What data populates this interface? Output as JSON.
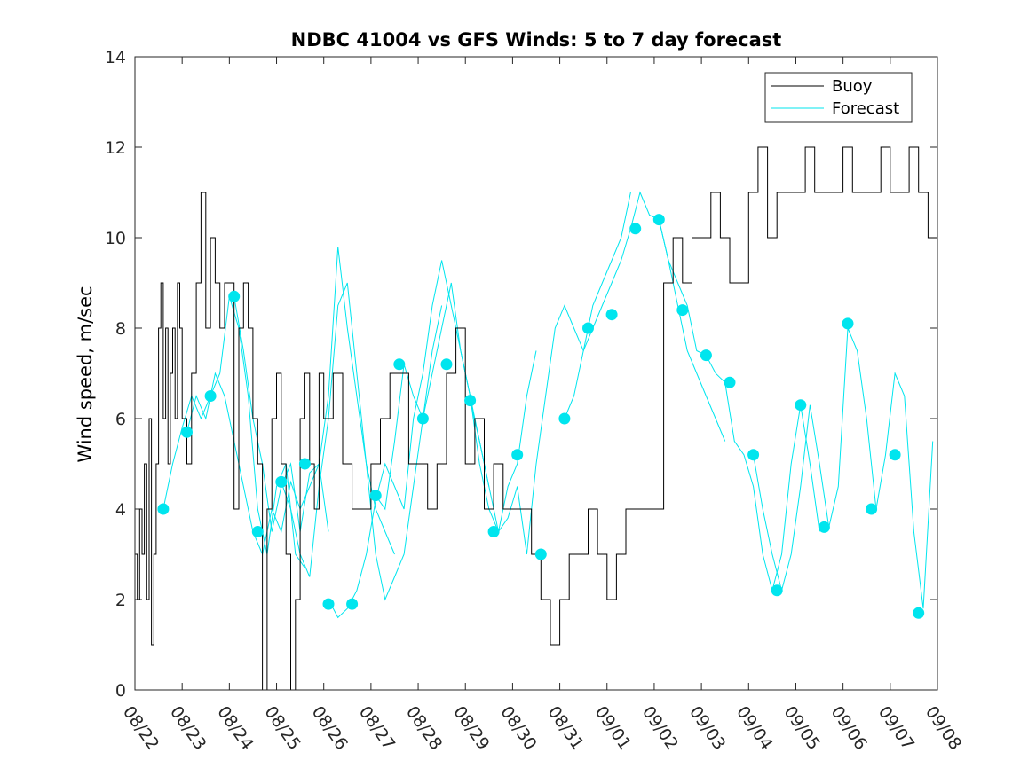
{
  "chart_data": {
    "type": "line",
    "title": "NDBC 41004 vs GFS Winds: 5 to 7 day forecast",
    "xlabel": "",
    "ylabel": "Wind speed, m/sec",
    "x_unit": "days since 08/22",
    "xlim": [
      0,
      17
    ],
    "ylim": [
      0,
      14
    ],
    "x_tick_values": [
      0,
      1,
      2,
      3,
      4,
      5,
      6,
      7,
      8,
      9,
      10,
      11,
      12,
      13,
      14,
      15,
      16,
      17
    ],
    "x_tick_labels": [
      "08/22",
      "08/23",
      "08/24",
      "08/25",
      "08/26",
      "08/27",
      "08/28",
      "08/29",
      "08/30",
      "08/31",
      "09/01",
      "09/02",
      "09/03",
      "09/04",
      "09/05",
      "09/06",
      "09/07",
      "09/08"
    ],
    "y_ticks": [
      0,
      2,
      4,
      6,
      8,
      10,
      12,
      14
    ],
    "legend": {
      "position": "top-right",
      "entries": [
        "Buoy",
        "Forecast"
      ]
    },
    "colors": {
      "buoy": "#000000",
      "forecast": "#00e5ee",
      "marker": "#00e5ee",
      "axis": "#262626"
    },
    "series": [
      {
        "name": "Buoy",
        "x": [
          0.0,
          0.05,
          0.1,
          0.15,
          0.2,
          0.25,
          0.3,
          0.35,
          0.4,
          0.45,
          0.5,
          0.55,
          0.6,
          0.65,
          0.7,
          0.75,
          0.8,
          0.85,
          0.9,
          0.95,
          1.0,
          1.1,
          1.2,
          1.3,
          1.4,
          1.5,
          1.6,
          1.7,
          1.8,
          1.9,
          2.0,
          2.1,
          2.2,
          2.3,
          2.4,
          2.5,
          2.6,
          2.7,
          2.8,
          2.9,
          3.0,
          3.1,
          3.2,
          3.3,
          3.4,
          3.5,
          3.6,
          3.7,
          3.8,
          3.9,
          4.0,
          4.2,
          4.4,
          4.6,
          4.8,
          5.0,
          5.2,
          5.4,
          5.6,
          5.8,
          6.0,
          6.2,
          6.4,
          6.6,
          6.8,
          7.0,
          7.2,
          7.4,
          7.6,
          7.8,
          8.0,
          8.2,
          8.4,
          8.6,
          8.8,
          9.0,
          9.2,
          9.4,
          9.6,
          9.8,
          10.0,
          10.2,
          10.4,
          10.6,
          10.8,
          11.0,
          11.2,
          11.4,
          11.6,
          11.8,
          12.0,
          12.2,
          12.4,
          12.6,
          12.8,
          13.0,
          13.2,
          13.4,
          13.6,
          13.8,
          14.0,
          14.2,
          14.4,
          14.6,
          14.8,
          15.0,
          15.2,
          15.4,
          15.6,
          15.8,
          16.0,
          16.2,
          16.4,
          16.6,
          16.8
        ],
        "values": [
          3,
          2,
          4,
          3,
          5,
          2,
          6,
          1,
          3,
          5,
          8,
          9,
          6,
          8,
          5,
          7,
          8,
          6,
          9,
          8,
          6,
          5,
          7,
          9,
          11,
          8,
          10,
          9,
          8,
          9,
          9,
          4,
          8,
          9,
          8,
          6,
          5,
          0,
          4,
          6,
          7,
          5,
          3,
          0,
          2,
          6,
          7,
          5,
          4,
          7,
          6,
          7,
          5,
          4,
          4,
          5,
          6,
          7,
          7,
          5,
          5,
          4,
          5,
          7,
          8,
          5,
          6,
          4,
          5,
          4,
          4,
          4,
          3,
          2,
          1,
          2,
          3,
          3,
          4,
          3,
          2,
          3,
          4,
          4,
          4,
          4,
          9,
          10,
          9,
          10,
          10,
          11,
          10,
          9,
          9,
          11,
          12,
          10,
          11,
          11,
          11,
          12,
          11,
          11,
          11,
          12,
          11,
          11,
          11,
          12,
          11,
          11,
          12,
          11,
          10
        ]
      },
      {
        "name": "Forecast",
        "runs": [
          {
            "x": [
              0.6,
              0.8,
              1.0,
              1.2,
              1.4,
              1.6,
              1.8,
              2.0,
              2.2,
              2.4,
              2.6,
              2.8,
              3.0,
              3.2,
              3.4,
              3.6
            ],
            "values": [
              4.0,
              5.0,
              5.8,
              6.5,
              6.0,
              6.5,
              7.0,
              8.7,
              8.0,
              6.5,
              4.0,
              3.0,
              4.5,
              5.0,
              3.0,
              2.7
            ]
          },
          {
            "x": [
              1.1,
              1.3,
              1.5,
              1.7,
              1.9,
              2.1,
              2.3,
              2.5,
              2.7,
              2.9,
              3.1,
              3.3,
              3.5,
              3.7,
              3.9,
              4.1
            ],
            "values": [
              5.7,
              6.5,
              6.0,
              7.0,
              6.5,
              5.5,
              4.5,
              3.5,
              3.0,
              4.0,
              3.5,
              4.6,
              4.0,
              4.5,
              5.0,
              3.5
            ]
          },
          {
            "x": [
              2.1,
              2.3,
              2.5,
              2.7,
              2.9,
              3.1,
              3.3,
              3.5,
              3.7,
              3.9,
              4.1,
              4.3,
              4.5,
              4.7,
              4.9,
              5.1,
              5.3,
              5.5
            ],
            "values": [
              8.7,
              7.5,
              6.0,
              5.0,
              3.5,
              4.5,
              5.0,
              3.5,
              4.8,
              5.0,
              6.5,
              9.8,
              8.0,
              6.5,
              5.0,
              4.0,
              3.5,
              3.0
            ]
          },
          {
            "x": [
              3.1,
              3.3,
              3.5,
              3.7,
              3.9,
              4.1,
              4.3,
              4.5,
              4.7,
              4.9,
              5.1,
              5.3,
              5.5,
              5.7,
              5.9,
              6.1,
              6.3,
              6.5
            ],
            "values": [
              4.6,
              4.0,
              3.0,
              2.5,
              4.5,
              6.0,
              8.5,
              9.0,
              7.0,
              5.0,
              3.0,
              2.0,
              2.5,
              3.0,
              4.5,
              6.0,
              7.5,
              8.5
            ]
          },
          {
            "x": [
              4.1,
              4.3,
              4.5,
              4.7,
              4.9,
              5.1,
              5.3,
              5.5,
              5.7,
              5.9,
              6.1,
              6.3,
              6.5,
              6.7,
              6.9,
              7.1,
              7.3,
              7.5
            ],
            "values": [
              2.0,
              1.6,
              1.8,
              2.2,
              3.0,
              4.2,
              5.0,
              4.5,
              4.0,
              6.0,
              7.0,
              8.5,
              9.5,
              8.5,
              7.5,
              6.5,
              5.5,
              4.5
            ]
          },
          {
            "x": [
              5.1,
              5.3,
              5.5,
              5.7,
              5.9,
              6.1,
              6.3,
              6.5,
              6.7,
              6.9,
              7.1,
              7.3,
              7.5,
              7.7,
              7.9,
              8.1,
              8.3,
              8.5
            ],
            "values": [
              4.3,
              4.0,
              5.5,
              7.2,
              6.5,
              6.0,
              7.0,
              8.0,
              9.0,
              7.5,
              6.5,
              5.0,
              4.0,
              3.5,
              4.5,
              5.0,
              6.5,
              7.5
            ]
          },
          {
            "x": [
              7.1,
              7.3,
              7.5,
              7.7,
              7.9,
              8.1,
              8.3,
              8.5,
              8.7,
              8.9,
              9.1,
              9.3,
              9.5,
              9.7,
              9.9,
              10.1,
              10.3,
              10.5
            ],
            "values": [
              6.4,
              5.5,
              4.5,
              3.5,
              3.8,
              4.5,
              3.0,
              5.0,
              6.5,
              8.0,
              8.5,
              8.0,
              7.5,
              8.5,
              9.0,
              9.5,
              10.0,
              11.0
            ]
          },
          {
            "x": [
              9.1,
              9.3,
              9.5,
              9.7,
              9.9,
              10.1,
              10.3,
              10.5,
              10.7,
              10.9,
              11.1,
              11.3,
              11.5,
              11.7,
              11.9,
              12.1,
              12.3,
              12.5
            ],
            "values": [
              6.0,
              6.5,
              7.5,
              8.0,
              8.5,
              9.0,
              9.5,
              10.2,
              11.0,
              10.5,
              10.4,
              9.5,
              8.5,
              7.5,
              7.0,
              6.5,
              6.0,
              5.5
            ]
          },
          {
            "x": [
              11.1,
              11.3,
              11.5,
              11.7,
              11.9,
              12.1,
              12.3,
              12.5,
              12.7,
              12.9,
              13.1,
              13.3,
              13.5,
              13.7,
              13.9,
              14.1,
              14.3,
              14.5
            ],
            "values": [
              10.4,
              9.5,
              9.0,
              8.5,
              7.5,
              7.4,
              7.0,
              6.8,
              5.5,
              5.2,
              4.5,
              3.0,
              2.2,
              3.0,
              5.0,
              6.3,
              5.0,
              3.5
            ]
          },
          {
            "x": [
              13.1,
              13.3,
              13.5,
              13.7,
              13.9,
              14.1,
              14.3,
              14.5,
              14.7,
              14.9,
              15.1,
              15.3,
              15.5,
              15.7,
              15.9,
              16.1,
              16.3,
              16.5,
              16.7,
              16.9
            ],
            "values": [
              5.2,
              4.0,
              3.0,
              2.2,
              3.0,
              4.5,
              6.3,
              5.0,
              3.6,
              4.5,
              8.0,
              7.5,
              6.0,
              4.0,
              5.2,
              7.0,
              6.5,
              3.5,
              1.8,
              5.5
            ]
          }
        ]
      },
      {
        "name": "Forecast markers",
        "x": [
          0.6,
          1.1,
          1.6,
          2.1,
          2.6,
          3.1,
          3.6,
          4.1,
          4.6,
          5.1,
          5.6,
          6.1,
          6.6,
          7.1,
          7.6,
          8.1,
          8.6,
          9.1,
          9.6,
          10.1,
          10.6,
          11.1,
          11.6,
          12.1,
          12.6,
          13.1,
          13.6,
          14.1,
          14.6,
          15.1,
          15.6,
          16.1,
          16.6
        ],
        "values": [
          4.0,
          5.7,
          6.5,
          8.7,
          3.5,
          4.6,
          5.0,
          1.9,
          1.9,
          4.3,
          7.2,
          6.0,
          7.2,
          6.4,
          3.5,
          5.2,
          3.0,
          6.0,
          8.0,
          8.3,
          10.2,
          10.4,
          8.4,
          7.4,
          6.8,
          5.2,
          2.2,
          6.3,
          3.6,
          8.1,
          4.0,
          5.2,
          1.7
        ]
      }
    ]
  }
}
